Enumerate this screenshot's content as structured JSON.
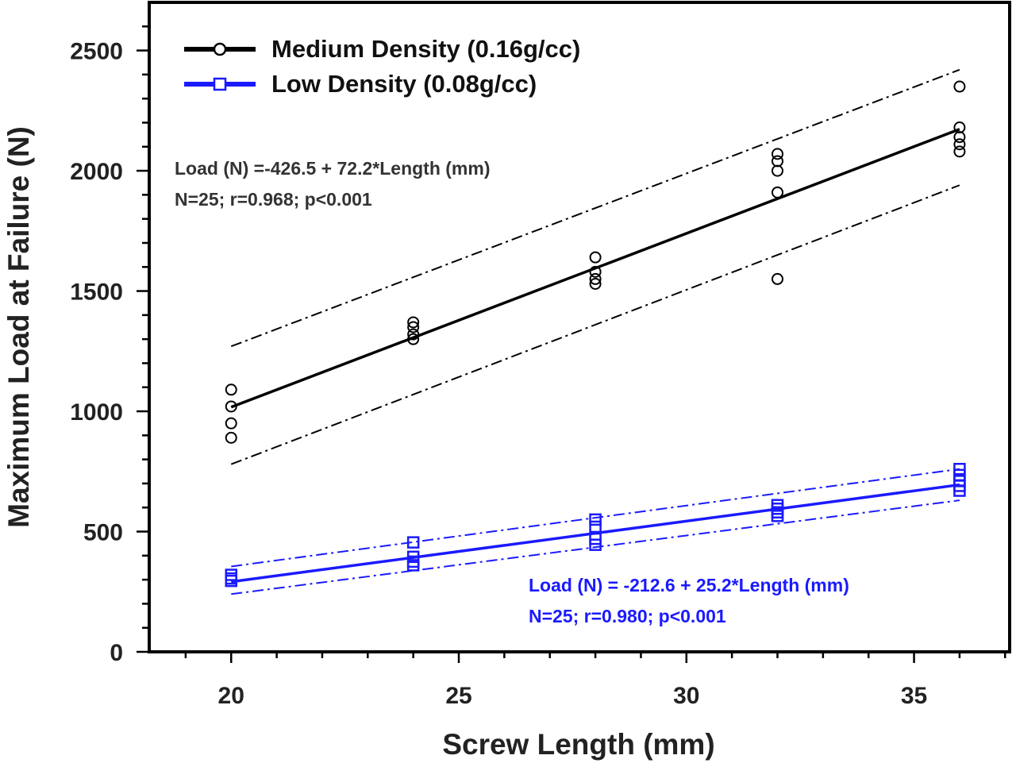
{
  "chart_data": {
    "type": "scatter",
    "title": "",
    "xlabel": "Screw Length (mm)",
    "ylabel": "Maximum Load at Failure (N)",
    "xlim": [
      18.2,
      37.1
    ],
    "ylim": [
      0,
      2700
    ],
    "x_ticks": [
      20,
      25,
      30,
      35
    ],
    "x_tick_labels": [
      "20",
      "25",
      "30",
      "35"
    ],
    "x_minor_step": 1,
    "y_ticks": [
      0,
      500,
      1000,
      1500,
      2000,
      2500
    ],
    "y_tick_labels": [
      "0",
      "500",
      "1000",
      "1500",
      "2000",
      "2500"
    ],
    "y_minor_step": 100,
    "grid": false,
    "legend": {
      "placement": "top-left",
      "entries": [
        {
          "name": "Medium Density (0.16g/cc)",
          "color": "#000000",
          "marker": "circle"
        },
        {
          "name": "Low Density (0.08g/cc)",
          "color": "#1a1aff",
          "marker": "square"
        }
      ]
    },
    "series": [
      {
        "name": "Medium Density (0.16g/cc)",
        "color": "#000000",
        "marker": "circle",
        "points": [
          [
            20,
            1090
          ],
          [
            20,
            1020
          ],
          [
            20,
            950
          ],
          [
            20,
            890
          ],
          [
            24,
            1370
          ],
          [
            24,
            1350
          ],
          [
            24,
            1320
          ],
          [
            24,
            1300
          ],
          [
            28,
            1640
          ],
          [
            28,
            1580
          ],
          [
            28,
            1550
          ],
          [
            28,
            1530
          ],
          [
            32,
            2070
          ],
          [
            32,
            2040
          ],
          [
            32,
            2000
          ],
          [
            32,
            1910
          ],
          [
            32,
            1550
          ],
          [
            36,
            2350
          ],
          [
            36,
            2180
          ],
          [
            36,
            2140
          ],
          [
            36,
            2110
          ],
          [
            36,
            2080
          ]
        ],
        "fit": {
          "intercept": -426.5,
          "slope": 72.2,
          "x_range": [
            20,
            36
          ]
        },
        "band": {
          "upper": [
            [
              20,
              1270
            ],
            [
              36,
              2420
            ]
          ],
          "lower": [
            [
              20,
              780
            ],
            [
              36,
              1940
            ]
          ]
        },
        "annotation": [
          "Load (N) =-426.5 + 72.2*Length (mm)",
          "N=25; r=0.968; p<0.001"
        ]
      },
      {
        "name": "Low Density (0.08g/cc)",
        "color": "#1a1aff",
        "marker": "square",
        "points": [
          [
            20,
            320
          ],
          [
            20,
            305
          ],
          [
            20,
            295
          ],
          [
            24,
            455
          ],
          [
            24,
            395
          ],
          [
            24,
            375
          ],
          [
            24,
            360
          ],
          [
            28,
            550
          ],
          [
            28,
            520
          ],
          [
            28,
            470
          ],
          [
            28,
            445
          ],
          [
            32,
            610
          ],
          [
            32,
            595
          ],
          [
            32,
            580
          ],
          [
            32,
            565
          ],
          [
            36,
            760
          ],
          [
            36,
            735
          ],
          [
            36,
            710
          ],
          [
            36,
            690
          ],
          [
            36,
            670
          ]
        ],
        "fit": {
          "intercept": -212.6,
          "slope": 25.2,
          "x_range": [
            20,
            36
          ]
        },
        "band": {
          "upper": [
            [
              20,
              355
            ],
            [
              36,
              760
            ]
          ],
          "lower": [
            [
              20,
              240
            ],
            [
              36,
              630
            ]
          ]
        },
        "annotation": [
          "Load (N) = -212.6 + 25.2*Length (mm)",
          "N=25; r=0.980; p<0.001"
        ]
      }
    ]
  }
}
